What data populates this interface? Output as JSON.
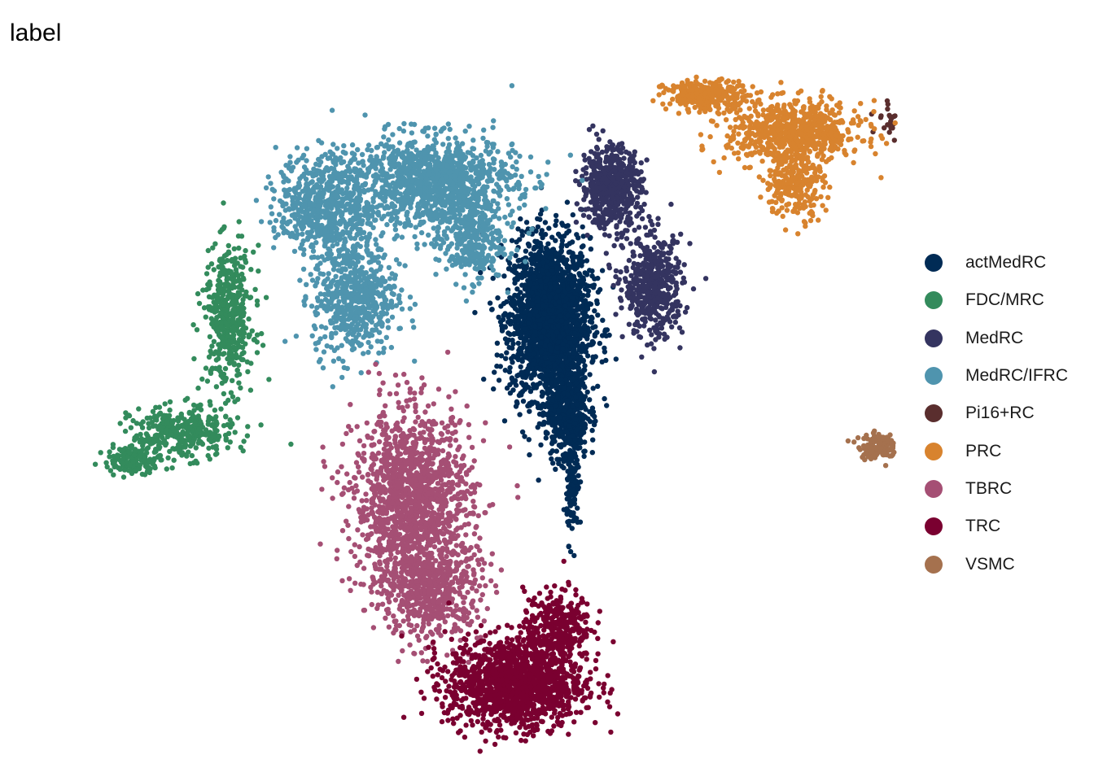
{
  "chart_data": {
    "type": "scatter",
    "title": "label",
    "xlabel": "",
    "ylabel": "",
    "grid": false,
    "axes_visible": false,
    "legend_placement": "right",
    "series": [
      {
        "name": "actMedRC",
        "color": "#002B55",
        "regions": [
          {
            "cx": 0.31,
            "cy": 0.55,
            "rx": 0.095,
            "ry": 0.16,
            "n": 2200
          },
          {
            "cx": 0.355,
            "cy": 0.35,
            "rx": 0.05,
            "ry": 0.1,
            "n": 500
          },
          {
            "cx": 0.37,
            "cy": 0.18,
            "rx": 0.015,
            "ry": 0.1,
            "n": 120
          }
        ]
      },
      {
        "name": "FDC/MRC",
        "color": "#338B5C",
        "regions": [
          {
            "cx": -0.53,
            "cy": 0.55,
            "rx": 0.06,
            "ry": 0.14,
            "n": 450
          },
          {
            "cx": -0.65,
            "cy": 0.3,
            "rx": 0.12,
            "ry": 0.05,
            "n": 350
          },
          {
            "cx": -0.78,
            "cy": 0.24,
            "rx": 0.07,
            "ry": 0.025,
            "n": 150
          }
        ]
      },
      {
        "name": "MedRC",
        "color": "#343460",
        "regions": [
          {
            "cx": 0.47,
            "cy": 0.84,
            "rx": 0.07,
            "ry": 0.08,
            "n": 600
          },
          {
            "cx": 0.58,
            "cy": 0.62,
            "rx": 0.07,
            "ry": 0.1,
            "n": 500
          }
        ]
      },
      {
        "name": "MedRC/IFRC",
        "color": "#4F94AE",
        "regions": [
          {
            "cx": 0.0,
            "cy": 0.85,
            "rx": 0.2,
            "ry": 0.09,
            "n": 1200
          },
          {
            "cx": -0.28,
            "cy": 0.8,
            "rx": 0.11,
            "ry": 0.1,
            "n": 600
          },
          {
            "cx": -0.2,
            "cy": 0.6,
            "rx": 0.1,
            "ry": 0.12,
            "n": 600
          },
          {
            "cx": 0.1,
            "cy": 0.72,
            "rx": 0.08,
            "ry": 0.08,
            "n": 300
          }
        ]
      },
      {
        "name": "Pi16+RC",
        "color": "#5A2E2E",
        "regions": [
          {
            "cx": 1.28,
            "cy": 0.98,
            "rx": 0.08,
            "ry": 0.04,
            "n": 400
          }
        ]
      },
      {
        "name": "PRC",
        "color": "#D8832E",
        "regions": [
          {
            "cx": 0.95,
            "cy": 0.96,
            "rx": 0.16,
            "ry": 0.06,
            "n": 700
          },
          {
            "cx": 0.72,
            "cy": 1.04,
            "rx": 0.1,
            "ry": 0.03,
            "n": 300
          },
          {
            "cx": 0.95,
            "cy": 0.85,
            "rx": 0.07,
            "ry": 0.07,
            "n": 250
          }
        ]
      },
      {
        "name": "TBRC",
        "color": "#A54F74",
        "regions": [
          {
            "cx": -0.05,
            "cy": 0.15,
            "rx": 0.14,
            "ry": 0.18,
            "n": 1500
          },
          {
            "cx": 0.0,
            "cy": -0.05,
            "rx": 0.12,
            "ry": 0.1,
            "n": 500
          }
        ]
      },
      {
        "name": "TRC",
        "color": "#7A0030",
        "regions": [
          {
            "cx": 0.22,
            "cy": -0.25,
            "rx": 0.16,
            "ry": 0.09,
            "n": 1400
          },
          {
            "cx": 0.33,
            "cy": -0.12,
            "rx": 0.08,
            "ry": 0.07,
            "n": 300
          }
        ]
      },
      {
        "name": "VSMC",
        "color": "#A5714E",
        "regions": [
          {
            "cx": 1.17,
            "cy": 0.27,
            "rx": 0.05,
            "ry": 0.025,
            "n": 140
          }
        ]
      }
    ]
  }
}
